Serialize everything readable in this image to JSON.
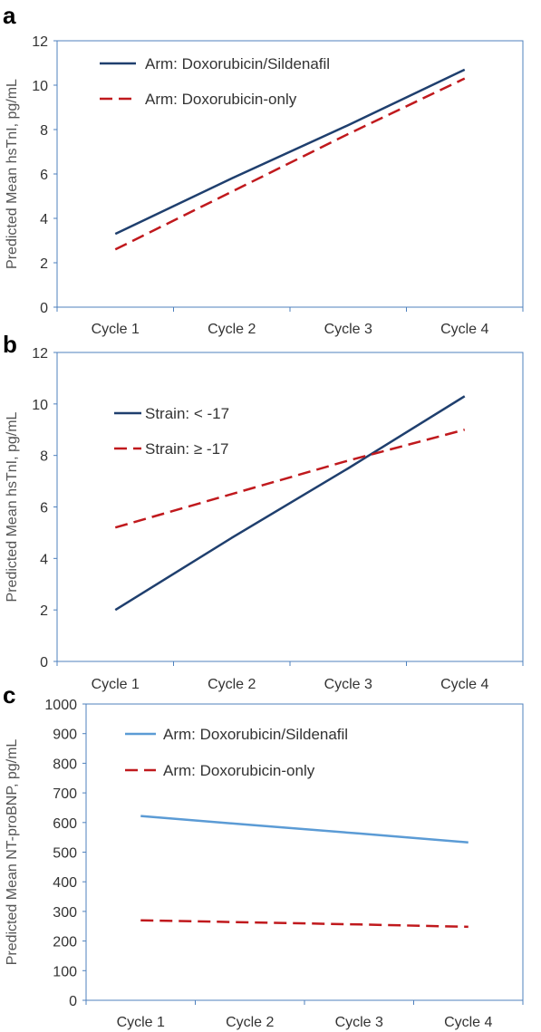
{
  "chart_data": [
    {
      "panel": "a",
      "type": "line",
      "categories": [
        "Cycle 1",
        "Cycle 2",
        "Cycle 3",
        "Cycle 4"
      ],
      "ylabel": "Predicted Mean hsTnI, pg/mL",
      "ylim": [
        0,
        12
      ],
      "yticks": [
        0,
        2,
        4,
        6,
        8,
        10,
        12
      ],
      "grid": false,
      "legend": "top-left",
      "series": [
        {
          "name": "Arm: Doxorubicin/Sildenafil",
          "values": [
            3.3,
            5.8,
            8.2,
            10.7
          ],
          "color": "#1f3f6e",
          "dash": "solid"
        },
        {
          "name": "Arm: Doxorubicin-only",
          "values": [
            2.6,
            5.2,
            7.8,
            10.3
          ],
          "color": "#c0191d",
          "dash": "dashed"
        }
      ]
    },
    {
      "panel": "b",
      "type": "line",
      "categories": [
        "Cycle 1",
        "Cycle 2",
        "Cycle 3",
        "Cycle 4"
      ],
      "ylabel": "Predicted Mean hsTnI, pg/mL",
      "ylim": [
        0,
        12
      ],
      "yticks": [
        0,
        2,
        4,
        6,
        8,
        10,
        12
      ],
      "grid": false,
      "legend": "top-left",
      "series": [
        {
          "name": "Strain: < -17",
          "values": [
            2.0,
            4.8,
            7.5,
            10.3
          ],
          "color": "#1f3f6e",
          "dash": "solid"
        },
        {
          "name": "Strain: ≥ -17",
          "values": [
            5.2,
            6.5,
            7.8,
            9.0
          ],
          "color": "#c0191d",
          "dash": "dashed"
        }
      ]
    },
    {
      "panel": "c",
      "type": "line",
      "categories": [
        "Cycle 1",
        "Cycle 2",
        "Cycle 3",
        "Cycle 4"
      ],
      "ylabel": "Predicted Mean NT-proBNP, pg/mL",
      "ylim": [
        0,
        1000
      ],
      "yticks": [
        0,
        100,
        200,
        300,
        400,
        500,
        600,
        700,
        800,
        900,
        1000
      ],
      "grid": false,
      "legend": "top-left",
      "series": [
        {
          "name": "Arm: Doxorubicin/Sildenafil",
          "values": [
            622,
            592,
            563,
            533
          ],
          "color": "#5b9bd5",
          "dash": "solid"
        },
        {
          "name": "Arm: Doxorubicin-only",
          "values": [
            270,
            263,
            256,
            248
          ],
          "color": "#c0191d",
          "dash": "dashed"
        }
      ]
    }
  ]
}
